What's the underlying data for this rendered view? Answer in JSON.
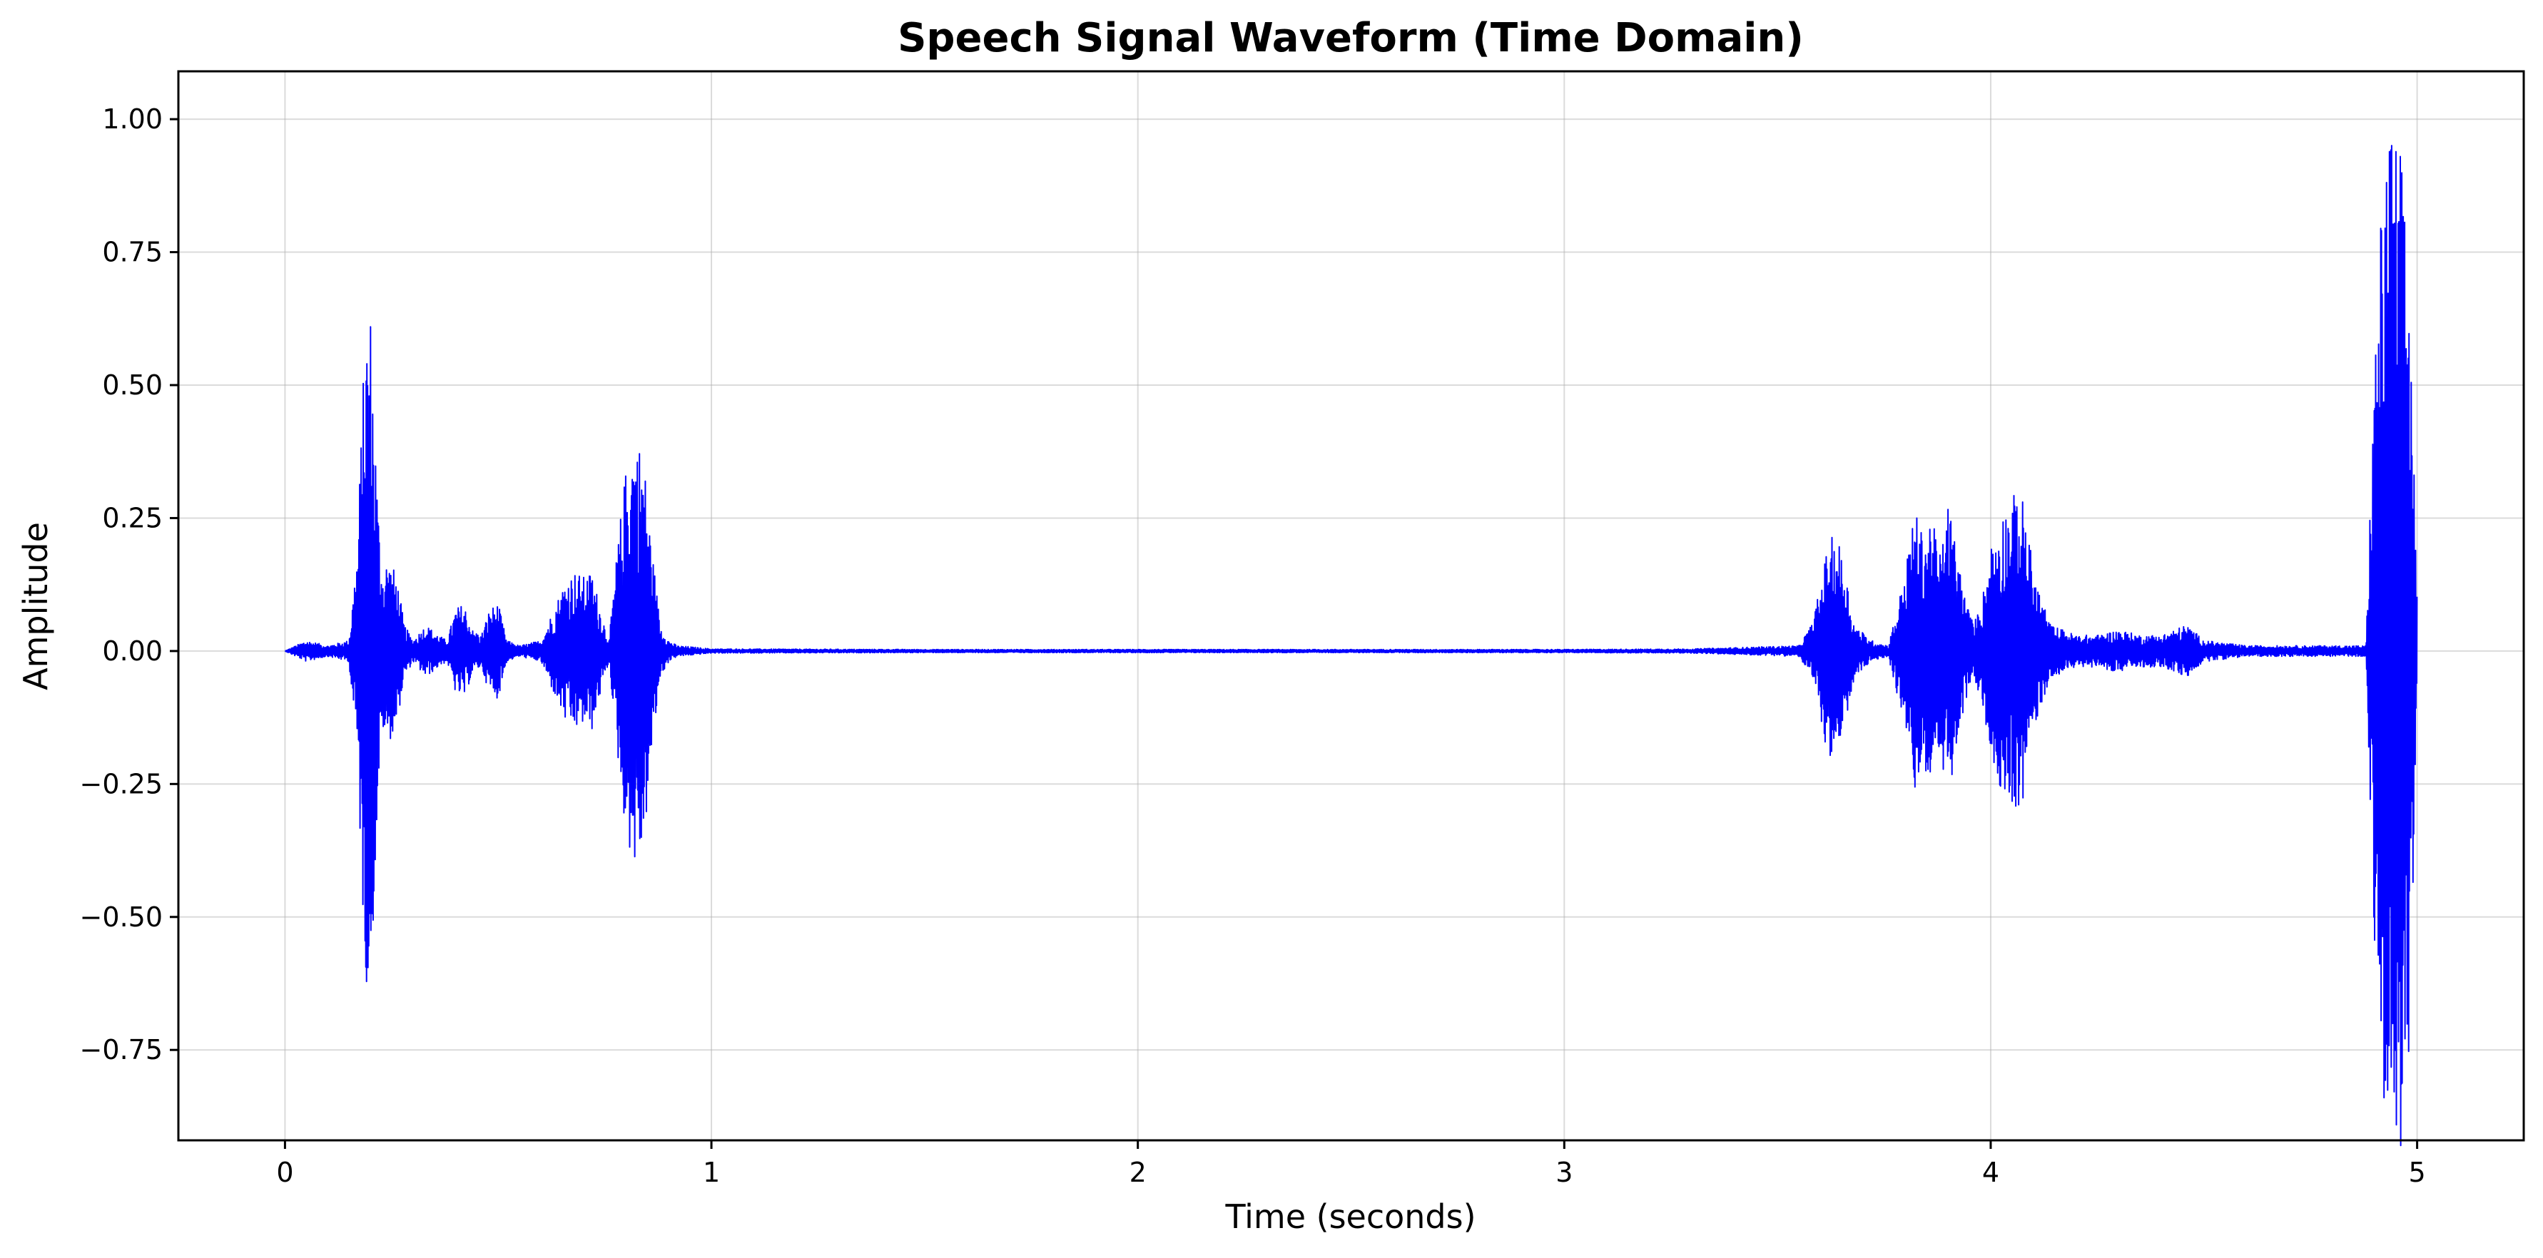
{
  "chart_data": {
    "type": "line",
    "title": "Speech Signal Waveform (Time Domain)",
    "xlabel": "Time (seconds)",
    "ylabel": "Amplitude",
    "xlim": [
      -0.25,
      5.25
    ],
    "ylim": [
      -0.92,
      1.09
    ],
    "x_ticks": [
      0,
      1,
      2,
      3,
      4,
      5
    ],
    "x_tick_labels": [
      "0",
      "1",
      "2",
      "3",
      "4",
      "5"
    ],
    "y_ticks": [
      1.0,
      0.75,
      0.5,
      0.25,
      0.0,
      -0.25,
      -0.5,
      -0.75
    ],
    "y_tick_labels": [
      "1.00",
      "0.75",
      "0.50",
      "0.25",
      "0.00",
      "−0.25",
      "−0.50",
      "−0.75"
    ],
    "grid": true,
    "line_color": "#0000ff",
    "series": [
      {
        "x": [
          0.0,
          0.05,
          0.1,
          0.15,
          0.17,
          0.18,
          0.19,
          0.2,
          0.21,
          0.22,
          0.23,
          0.24,
          0.25,
          0.26,
          0.28,
          0.3,
          0.33,
          0.36,
          0.38,
          0.4,
          0.42,
          0.44,
          0.46,
          0.48,
          0.5,
          0.52,
          0.55,
          0.6,
          0.64,
          0.66,
          0.68,
          0.7,
          0.72,
          0.74,
          0.76,
          0.78,
          0.8,
          0.82,
          0.84,
          0.86,
          0.88,
          0.9,
          0.92,
          0.95,
          1.0,
          1.5,
          2.0,
          2.5,
          3.0,
          3.3,
          3.55,
          3.58,
          3.6,
          3.62,
          3.64,
          3.66,
          3.68,
          3.72,
          3.76,
          3.8,
          3.82,
          3.84,
          3.86,
          3.88,
          3.9,
          3.92,
          3.94,
          3.96,
          3.98,
          4.0,
          4.02,
          4.04,
          4.06,
          4.08,
          4.1,
          4.14,
          4.2,
          4.25,
          4.3,
          4.35,
          4.4,
          4.43,
          4.46,
          4.5,
          4.6,
          4.7,
          4.8,
          4.88,
          4.9,
          4.92,
          4.94,
          4.96,
          4.98,
          5.0
        ],
        "envelope": [
          0.0,
          0.02,
          0.01,
          0.02,
          0.2,
          0.45,
          0.62,
          0.66,
          0.45,
          0.25,
          0.15,
          0.18,
          0.16,
          0.15,
          0.05,
          0.02,
          0.05,
          0.03,
          0.02,
          0.08,
          0.09,
          0.04,
          0.03,
          0.08,
          0.09,
          0.02,
          0.01,
          0.02,
          0.1,
          0.14,
          0.15,
          0.14,
          0.15,
          0.08,
          0.02,
          0.2,
          0.35,
          0.41,
          0.38,
          0.2,
          0.05,
          0.02,
          0.01,
          0.008,
          0.004,
          0.003,
          0.003,
          0.003,
          0.003,
          0.004,
          0.01,
          0.05,
          0.12,
          0.21,
          0.22,
          0.15,
          0.05,
          0.02,
          0.01,
          0.15,
          0.27,
          0.22,
          0.26,
          0.18,
          0.28,
          0.2,
          0.1,
          0.05,
          0.1,
          0.2,
          0.25,
          0.28,
          0.3,
          0.28,
          0.15,
          0.05,
          0.03,
          0.03,
          0.04,
          0.03,
          0.03,
          0.04,
          0.05,
          0.02,
          0.01,
          0.01,
          0.01,
          0.01,
          0.55,
          0.9,
          1.0,
          0.95,
          0.8,
          0.1
        ]
      }
    ]
  }
}
